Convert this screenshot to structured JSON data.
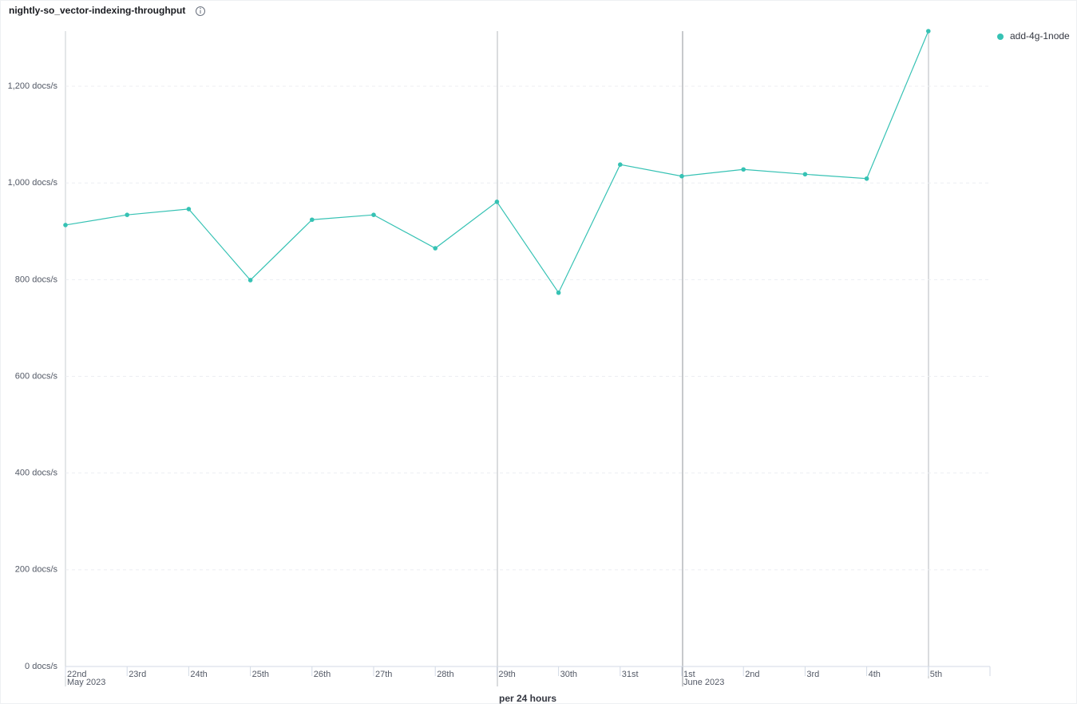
{
  "chart_data": {
    "type": "line",
    "title": "nightly-so_vector-indexing-throughput",
    "x_label": "per 24 hours",
    "categories": [
      "22nd",
      "23rd",
      "24th",
      "25th",
      "26th",
      "27th",
      "28th",
      "29th",
      "30th",
      "31st",
      "1st",
      "2nd",
      "3rd",
      "4th",
      "5th"
    ],
    "category_groups": [
      "May 2023",
      null,
      null,
      null,
      null,
      null,
      null,
      null,
      null,
      null,
      "June 2023",
      null,
      null,
      null,
      null
    ],
    "series": [
      {
        "name": "add-4g-1node",
        "color": "#36c2b4",
        "values": [
          913,
          934,
          946,
          799,
          924,
          934,
          865,
          961,
          773,
          1038,
          1014,
          1028,
          1018,
          1009,
          1314
        ]
      }
    ],
    "ylim": [
      0,
      1314
    ],
    "yticks": [
      {
        "value": 0,
        "label": "0 docs/s"
      },
      {
        "value": 200,
        "label": "200 docs/s"
      },
      {
        "value": 400,
        "label": "400 docs/s"
      },
      {
        "value": 600,
        "label": "600 docs/s"
      },
      {
        "value": 800,
        "label": "800 docs/s"
      },
      {
        "value": 1000,
        "label": "1,000 docs/s"
      },
      {
        "value": 1200,
        "label": "1,200 docs/s"
      }
    ],
    "grid": true,
    "legend": "top-right"
  }
}
